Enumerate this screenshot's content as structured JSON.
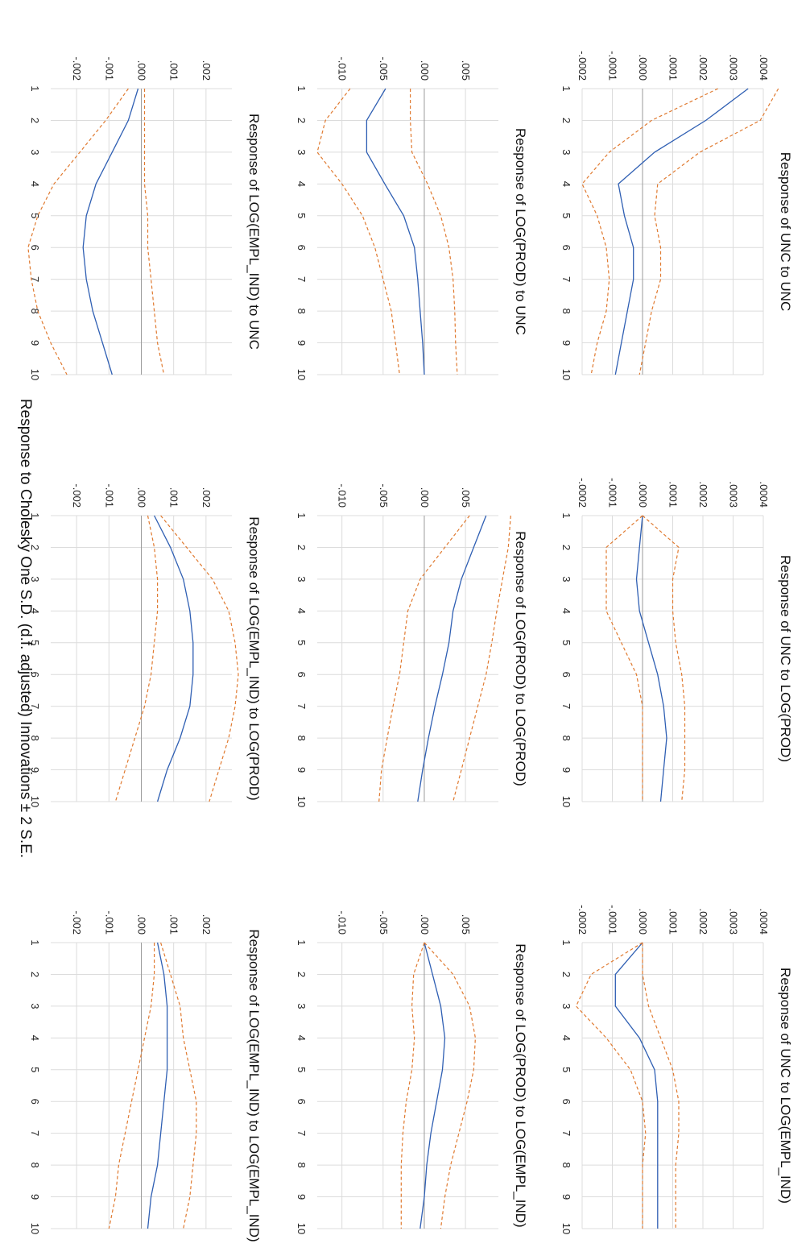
{
  "figure_title": "Response to Cholesky One S.D. (d.f. adjusted) Innovations ± 2 S.E.",
  "colors": {
    "response": "#2f5fb3",
    "band": "#e07a30",
    "grid": "#dcdcdc",
    "zero": "#9a9a9a"
  },
  "chart_data": [
    {
      "type": "line",
      "title": "Response of UNC to UNC",
      "x": [
        1,
        2,
        3,
        4,
        5,
        6,
        7,
        8,
        9,
        10
      ],
      "ylim": [
        -0.0002,
        0.0004
      ],
      "yticks": [
        ".0004",
        ".0003",
        ".0002",
        ".0001",
        ".0000",
        "-.0001",
        "-.0002"
      ],
      "ytick_values": [
        0.0004,
        0.0003,
        0.0002,
        0.0001,
        0,
        -0.0001,
        -0.0002
      ],
      "series": [
        {
          "role": "response",
          "values": [
            0.00035,
            0.00021,
            4e-05,
            -8e-05,
            -6e-05,
            -3e-05,
            -3e-05,
            -5e-05,
            -7e-05,
            -9e-05
          ]
        },
        {
          "role": "upper",
          "values": [
            0.00045,
            0.00039,
            0.00019,
            5e-05,
            4e-05,
            6e-05,
            6e-05,
            3e-05,
            1e-05,
            -1e-05
          ]
        },
        {
          "role": "lower",
          "values": [
            0.00025,
            3e-05,
            -0.00011,
            -0.0002,
            -0.00015,
            -0.00012,
            -0.00011,
            -0.00012,
            -0.00015,
            -0.00017
          ]
        }
      ]
    },
    {
      "type": "line",
      "title": "Response of UNC to LOG(PROD)",
      "x": [
        1,
        2,
        3,
        4,
        5,
        6,
        7,
        8,
        9,
        10
      ],
      "ylim": [
        -0.0002,
        0.0004
      ],
      "yticks": [
        ".0004",
        ".0003",
        ".0002",
        ".0001",
        ".0000",
        "-.0001",
        "-.0002"
      ],
      "ytick_values": [
        0.0004,
        0.0003,
        0.0002,
        0.0001,
        0,
        -0.0001,
        -0.0002
      ],
      "series": [
        {
          "role": "response",
          "values": [
            0,
            -1e-05,
            -2e-05,
            -1e-05,
            2e-05,
            5e-05,
            7e-05,
            8e-05,
            7e-05,
            6e-05
          ]
        },
        {
          "role": "upper",
          "values": [
            0,
            0.00012,
            0.0001,
            0.0001,
            0.00011,
            0.00013,
            0.00014,
            0.00014,
            0.00014,
            0.00013
          ]
        },
        {
          "role": "lower",
          "values": [
            0,
            -0.00012,
            -0.00012,
            -0.00012,
            -7e-05,
            -2e-05,
            0,
            0,
            0,
            0
          ]
        }
      ]
    },
    {
      "type": "line",
      "title": "Response of UNC to LOG(EMPL_IND)",
      "x": [
        1,
        2,
        3,
        4,
        5,
        6,
        7,
        8,
        9,
        10
      ],
      "ylim": [
        -0.0002,
        0.0004
      ],
      "yticks": [
        ".0004",
        ".0003",
        ".0002",
        ".0001",
        ".0000",
        "-.0001",
        "-.0002"
      ],
      "ytick_values": [
        0.0004,
        0.0003,
        0.0002,
        0.0001,
        0,
        -0.0001,
        -0.0002
      ],
      "series": [
        {
          "role": "response",
          "values": [
            0,
            -9e-05,
            -9e-05,
            -1e-05,
            4e-05,
            5e-05,
            5e-05,
            5e-05,
            5e-05,
            5e-05
          ]
        },
        {
          "role": "upper",
          "values": [
            0,
            0,
            2e-05,
            6e-05,
            0.0001,
            0.00012,
            0.00012,
            0.00011,
            0.00011,
            0.00011
          ]
        },
        {
          "role": "lower",
          "values": [
            0,
            -0.00017,
            -0.00022,
            -0.00012,
            -4e-05,
            0,
            1e-05,
            0,
            0,
            0
          ]
        }
      ]
    },
    {
      "type": "line",
      "title": "Response of LOG(PROD) to UNC",
      "x": [
        1,
        2,
        3,
        4,
        5,
        6,
        7,
        8,
        9,
        10
      ],
      "ylim": [
        -0.013,
        0.009
      ],
      "yticks": [
        ".005",
        ".000",
        "-.005",
        "-.010"
      ],
      "ytick_values": [
        0.005,
        0,
        -0.005,
        -0.01
      ],
      "series": [
        {
          "role": "response",
          "values": [
            -0.0047,
            -0.007,
            -0.007,
            -0.0048,
            -0.0025,
            -0.0012,
            -0.0008,
            -0.0005,
            -0.0002,
            0
          ]
        },
        {
          "role": "upper",
          "values": [
            -0.0017,
            -0.0017,
            -0.0015,
            0.0004,
            0.002,
            0.003,
            0.0035,
            0.0037,
            0.0038,
            0.004
          ]
        },
        {
          "role": "lower",
          "values": [
            -0.009,
            -0.012,
            -0.013,
            -0.01,
            -0.0075,
            -0.006,
            -0.005,
            -0.004,
            -0.0035,
            -0.003
          ]
        }
      ]
    },
    {
      "type": "line",
      "title": "Response of LOG(PROD) to LOG(PROD)",
      "x": [
        1,
        2,
        3,
        4,
        5,
        6,
        7,
        8,
        9,
        10
      ],
      "ylim": [
        -0.013,
        0.009
      ],
      "yticks": [
        ".005",
        ".000",
        "-.005",
        "-.010"
      ],
      "ytick_values": [
        0.005,
        0,
        -0.005,
        -0.01
      ],
      "series": [
        {
          "role": "response",
          "values": [
            0.0075,
            0.006,
            0.0045,
            0.0035,
            0.003,
            0.0022,
            0.0013,
            0.0005,
            -0.0002,
            -0.0008
          ]
        },
        {
          "role": "upper",
          "values": [
            0.0105,
            0.0102,
            0.0095,
            0.0088,
            0.0082,
            0.0075,
            0.0065,
            0.0055,
            0.0045,
            0.0035
          ]
        },
        {
          "role": "lower",
          "values": [
            0.0055,
            0.0025,
            -0.0005,
            -0.002,
            -0.0025,
            -0.003,
            -0.0038,
            -0.0045,
            -0.0052,
            -0.0055
          ]
        }
      ]
    },
    {
      "type": "line",
      "title": "Response of LOG(PROD) to LOG(EMPL_IND)",
      "x": [
        1,
        2,
        3,
        4,
        5,
        6,
        7,
        8,
        9,
        10
      ],
      "ylim": [
        -0.013,
        0.009
      ],
      "yticks": [
        ".005",
        ".000",
        "-.005",
        "-.010"
      ],
      "ytick_values": [
        0.005,
        0,
        -0.005,
        -0.01
      ],
      "series": [
        {
          "role": "response",
          "values": [
            0,
            0.001,
            0.002,
            0.0025,
            0.0022,
            0.0015,
            0.0008,
            0.0003,
            0,
            -0.0005
          ]
        },
        {
          "role": "upper",
          "values": [
            0,
            0.0035,
            0.0055,
            0.0062,
            0.006,
            0.0052,
            0.0042,
            0.0032,
            0.0025,
            0.002
          ]
        },
        {
          "role": "lower",
          "values": [
            0,
            -0.0013,
            -0.0015,
            -0.0012,
            -0.0015,
            -0.0022,
            -0.0026,
            -0.0028,
            -0.0028,
            -0.0028
          ]
        }
      ]
    },
    {
      "type": "line",
      "title": "Response of LOG(EMPL_IND) to UNC",
      "x": [
        1,
        2,
        3,
        4,
        5,
        6,
        7,
        8,
        9,
        10
      ],
      "ylim": [
        -0.0028,
        0.0028
      ],
      "yticks": [
        ".002",
        ".001",
        ".000",
        "-.001",
        "-.002"
      ],
      "ytick_values": [
        0.002,
        0.001,
        0,
        -0.001,
        -0.002
      ],
      "series": [
        {
          "role": "response",
          "values": [
            -0.0001,
            -0.0004,
            -0.0009,
            -0.0014,
            -0.0017,
            -0.0018,
            -0.0017,
            -0.0015,
            -0.0012,
            -0.0009
          ]
        },
        {
          "role": "upper",
          "values": [
            0.0001,
            0.0001,
            0.0001,
            0.0001,
            0.0002,
            0.0002,
            0.0003,
            0.0004,
            0.0005,
            0.0007
          ]
        },
        {
          "role": "lower",
          "values": [
            -0.0004,
            -0.0011,
            -0.0019,
            -0.0027,
            -0.0032,
            -0.0035,
            -0.0034,
            -0.0032,
            -0.0028,
            -0.0023
          ]
        }
      ]
    },
    {
      "type": "line",
      "title": "Response of LOG(EMPL_IND) to LOG(PROD)",
      "x": [
        1,
        2,
        3,
        4,
        5,
        6,
        7,
        8,
        9,
        10
      ],
      "ylim": [
        -0.0028,
        0.0028
      ],
      "yticks": [
        ".002",
        ".001",
        ".000",
        "-.001",
        "-.002"
      ],
      "ytick_values": [
        0.002,
        0.001,
        0,
        -0.001,
        -0.002
      ],
      "series": [
        {
          "role": "response",
          "values": [
            0.0004,
            0.0009,
            0.0013,
            0.0015,
            0.0016,
            0.0016,
            0.0015,
            0.0012,
            0.0008,
            0.0005
          ]
        },
        {
          "role": "upper",
          "values": [
            0.0006,
            0.0014,
            0.0022,
            0.0027,
            0.0029,
            0.003,
            0.0029,
            0.0027,
            0.0024,
            0.0021
          ]
        },
        {
          "role": "lower",
          "values": [
            0.0002,
            0.0004,
            0.0005,
            0.0005,
            0.0004,
            0.0003,
            0.0001,
            -0.0002,
            -0.0005,
            -0.0008
          ]
        }
      ]
    },
    {
      "type": "line",
      "title": "Response of LOG(EMPL_IND) to LOG(EMPL_IND)",
      "x": [
        1,
        2,
        3,
        4,
        5,
        6,
        7,
        8,
        9,
        10
      ],
      "ylim": [
        -0.0028,
        0.0028
      ],
      "yticks": [
        ".002",
        ".001",
        ".000",
        "-.001",
        "-.002"
      ],
      "ytick_values": [
        0.002,
        0.001,
        0,
        -0.001,
        -0.002
      ],
      "series": [
        {
          "role": "response",
          "values": [
            0.0005,
            0.0007,
            0.0008,
            0.0008,
            0.0008,
            0.0007,
            0.0006,
            0.0005,
            0.0003,
            0.0002
          ]
        },
        {
          "role": "upper",
          "values": [
            0.0006,
            0.0009,
            0.0012,
            0.0013,
            0.0015,
            0.0017,
            0.0017,
            0.0016,
            0.0015,
            0.0013
          ]
        },
        {
          "role": "lower",
          "values": [
            0.0004,
            0.0004,
            0.0003,
            0.0001,
            -0.0001,
            -0.0003,
            -0.0005,
            -0.0007,
            -0.0008,
            -0.001
          ]
        }
      ]
    }
  ]
}
